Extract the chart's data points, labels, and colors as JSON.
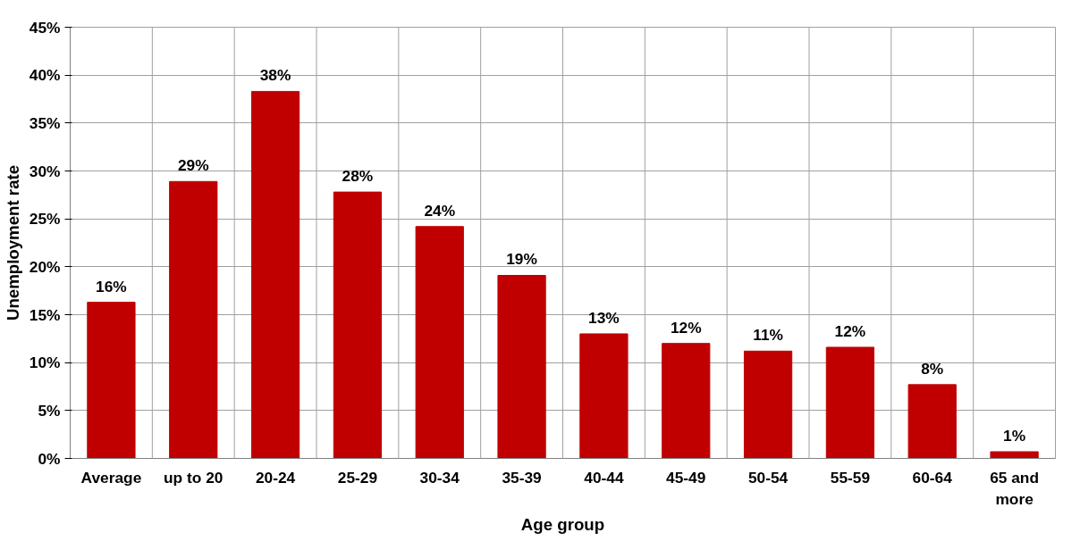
{
  "chart_data": {
    "type": "bar",
    "xlabel": "Age group",
    "ylabel": "Unemployment rate",
    "categories": [
      "Average",
      "up to 20",
      "20-24",
      "25-29",
      "30-34",
      "35-39",
      "40-44",
      "45-49",
      "50-54",
      "55-59",
      "60-64",
      "65 and more"
    ],
    "values": [
      16.3,
      28.9,
      38.3,
      27.8,
      24.2,
      19.1,
      13.0,
      12.0,
      11.2,
      11.6,
      7.7,
      0.7
    ],
    "value_labels": [
      "16%",
      "29%",
      "38%",
      "28%",
      "24%",
      "19%",
      "13%",
      "12%",
      "11%",
      "12%",
      "8%",
      "1%"
    ],
    "color": "#c00000",
    "ylim": [
      0,
      45
    ],
    "yticks": [
      {
        "value": 0,
        "label": "0%"
      },
      {
        "value": 5,
        "label": "5%"
      },
      {
        "value": 10,
        "label": "10%"
      },
      {
        "value": 15,
        "label": "15%"
      },
      {
        "value": 20,
        "label": "20%"
      },
      {
        "value": 25,
        "label": "25%"
      },
      {
        "value": 30,
        "label": "30%"
      },
      {
        "value": 35,
        "label": "35%"
      },
      {
        "value": 40,
        "label": "40%"
      },
      {
        "value": 45,
        "label": "45%"
      }
    ],
    "grid": true
  }
}
